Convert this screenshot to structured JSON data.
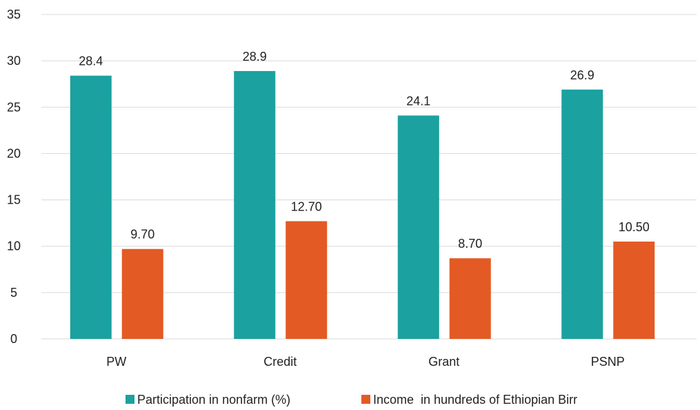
{
  "chart_data": {
    "type": "bar",
    "categories": [
      "PW",
      "Credit",
      "Grant",
      "PSNP"
    ],
    "series": [
      {
        "name": "Participation in nonfarm (%)",
        "values": [
          28.4,
          28.9,
          24.1,
          26.9
        ],
        "labels": [
          "28.4",
          "28.9",
          "24.1",
          "26.9"
        ],
        "color": "#1ba19f"
      },
      {
        "name": "Income  in hundreds of Ethiopian Birr",
        "values": [
          9.7,
          12.7,
          8.7,
          10.5
        ],
        "labels": [
          "9.70",
          "12.70",
          "8.70",
          "10.50"
        ],
        "color": "#e35a24"
      }
    ],
    "ylim": [
      0,
      35
    ],
    "yticks": [
      0,
      5,
      10,
      15,
      20,
      25,
      30,
      35
    ],
    "grid": true,
    "legend_position": "bottom",
    "title": "",
    "xlabel": "",
    "ylabel": ""
  }
}
